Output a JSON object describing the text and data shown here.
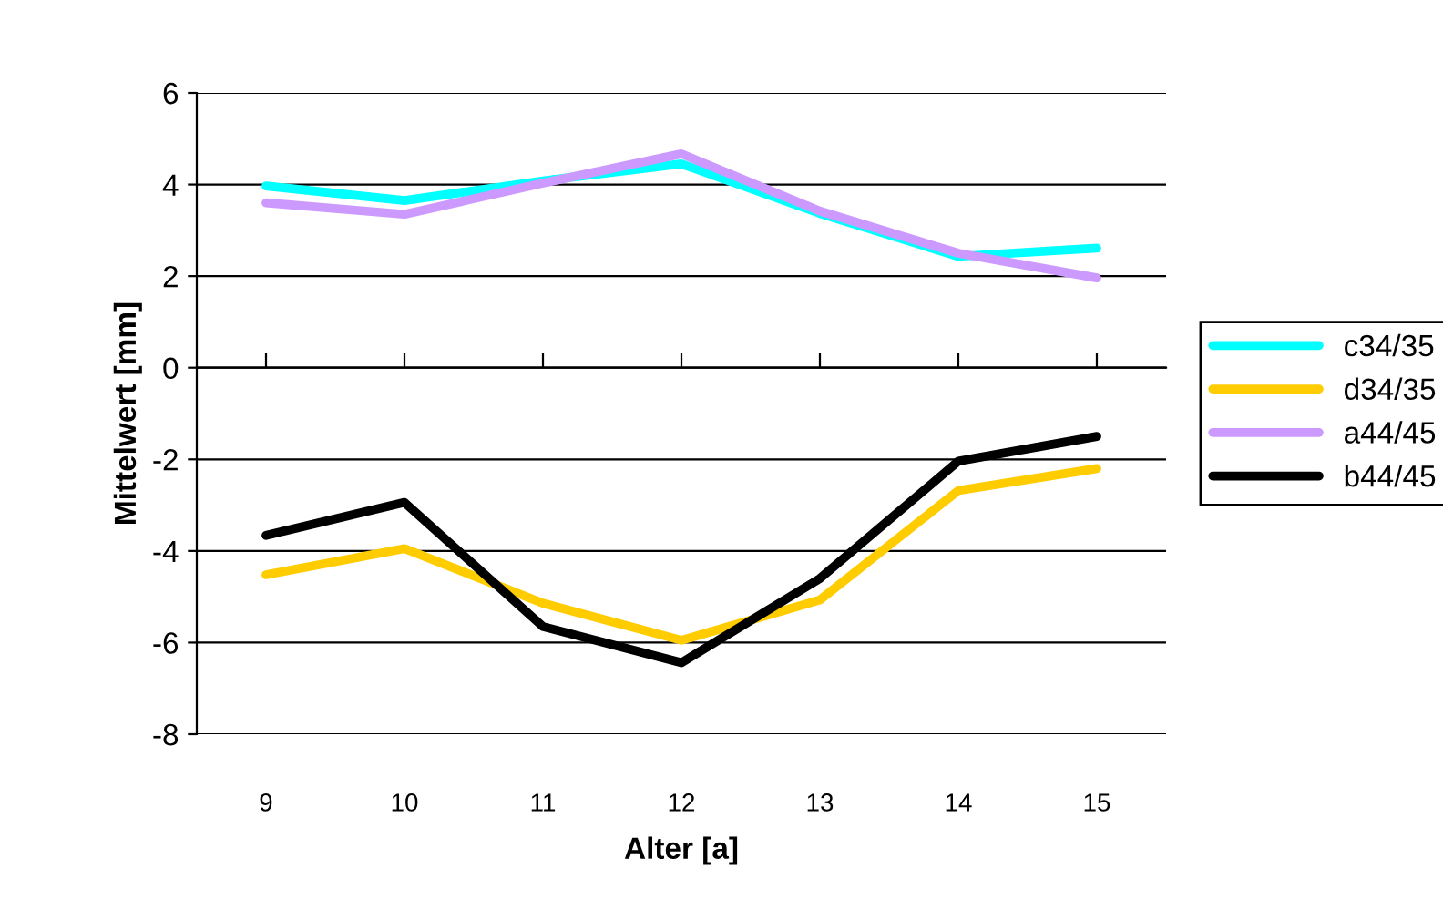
{
  "chart_data": {
    "type": "line",
    "xlabel": "Alter [a]",
    "ylabel": "Mittelwert [mm]",
    "categories": [
      "9",
      "10",
      "11",
      "12",
      "13",
      "14",
      "15"
    ],
    "series": [
      {
        "name": "c34/35",
        "color": "#00ffff",
        "values": [
          3.97,
          3.65,
          4.08,
          4.45,
          3.37,
          2.43,
          2.61
        ]
      },
      {
        "name": "d34/35",
        "color": "#ffcc00",
        "values": [
          -4.52,
          -3.95,
          -5.14,
          -5.95,
          -5.07,
          -2.68,
          -2.2
        ]
      },
      {
        "name": "a44/45",
        "color": "#cc99ff",
        "values": [
          3.6,
          3.35,
          4.03,
          4.67,
          3.42,
          2.5,
          1.96
        ]
      },
      {
        "name": "b44/45",
        "color": "#000000",
        "values": [
          -3.66,
          -2.94,
          -5.65,
          -6.44,
          -4.6,
          -2.04,
          -1.5
        ]
      }
    ],
    "ylim": [
      -8,
      6
    ],
    "yticks": [
      -8,
      -6,
      -4,
      -2,
      0,
      2,
      4,
      6
    ],
    "grid": "y",
    "legend": "right",
    "marker": "none",
    "line_style": "solid"
  }
}
